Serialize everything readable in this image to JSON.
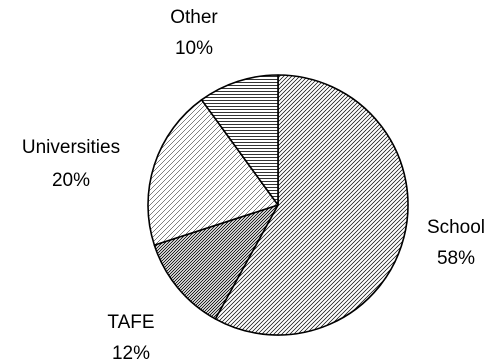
{
  "chart_data": {
    "type": "pie",
    "title": "",
    "slices": [
      {
        "label": "School",
        "value": 58,
        "value_text": "58%",
        "pattern": "diag-fine"
      },
      {
        "label": "TAFE",
        "value": 12,
        "value_text": "12%",
        "pattern": "diag-dense"
      },
      {
        "label": "Universities",
        "value": 20,
        "value_text": "20%",
        "pattern": "diag-light"
      },
      {
        "label": "Other",
        "value": 10,
        "value_text": "10%",
        "pattern": "horizontal-lines"
      }
    ],
    "start_angle_deg": 0,
    "direction": "clockwise",
    "legend": "none",
    "colors": {
      "background": "#ffffff",
      "stroke": "#000000",
      "text": "#000000"
    }
  }
}
